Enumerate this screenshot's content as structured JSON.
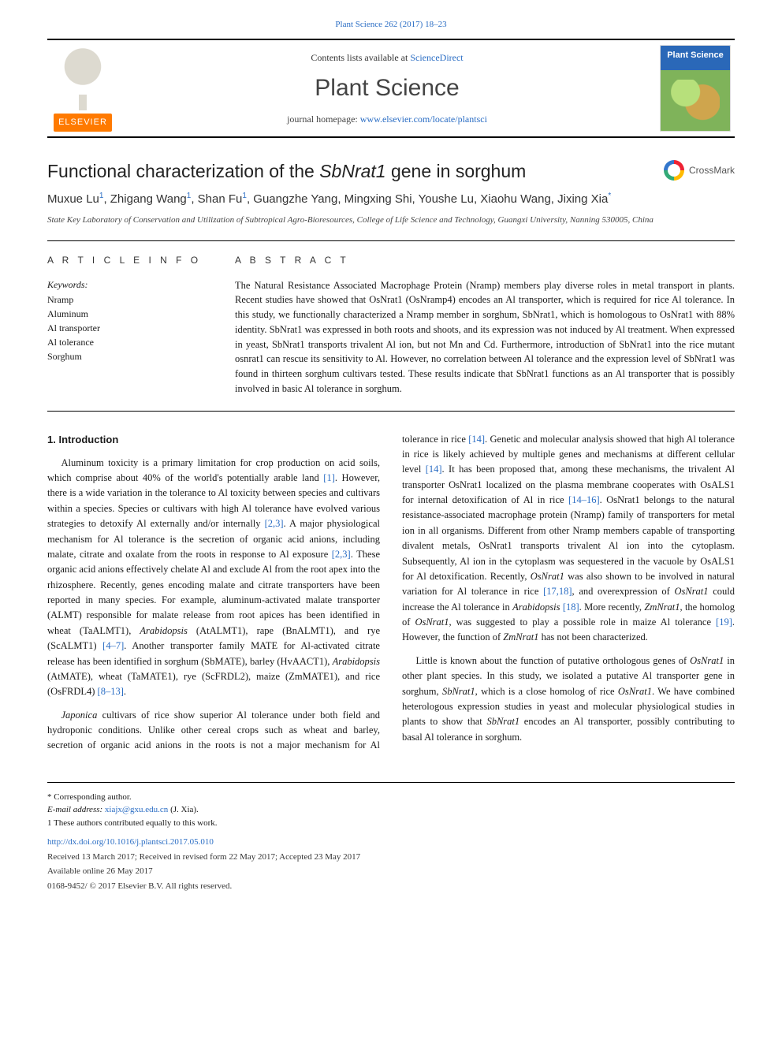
{
  "colors": {
    "link": "#2a6dc4",
    "elsevier_orange": "#ff7a00",
    "cover_blue": "#2a68b8",
    "cover_green": "#7fb35a",
    "text": "#1a1a1a"
  },
  "top_citation": "Plant Science 262 (2017) 18–23",
  "masthead": {
    "contents_prefix": "Contents lists available at ",
    "contents_link": "ScienceDirect",
    "journal": "Plant Science",
    "homepage_prefix": "journal homepage: ",
    "homepage_url": "www.elsevier.com/locate/plantsci",
    "publisher_wordmark": "ELSEVIER",
    "cover_label": "Plant Science"
  },
  "title_plain_pre": "Functional characterization of the ",
  "title_ital": "SbNrat1",
  "title_plain_post": " gene in sorghum",
  "crossmark_label": "CrossMark",
  "authors_html": "Muxue Lu<sup>1</sup>, Zhigang Wang<sup>1</sup>, Shan Fu<sup>1</sup>, Guangzhe Yang, Mingxing Shi, Youshe Lu, Xiaohu Wang, Jixing Xia<sup>*</sup>",
  "affiliation": "State Key Laboratory of Conservation and Utilization of Subtropical Agro-Bioresources, College of Life Science and Technology, Guangxi University, Nanning 530005, China",
  "labels": {
    "article_info": "A R T I C L E  I N F O",
    "abstract": "A B S T R A C T",
    "keywords": "Keywords:"
  },
  "keywords": [
    "Nramp",
    "Aluminum",
    "Al transporter",
    "Al tolerance",
    "Sorghum"
  ],
  "abstract": "The Natural Resistance Associated Macrophage Protein (Nramp) members play diverse roles in metal transport in plants. Recent studies have showed that OsNrat1 (OsNramp4) encodes an Al transporter, which is required for rice Al tolerance. In this study, we functionally characterized a Nramp member in sorghum, SbNrat1, which is homologous to OsNrat1 with 88% identity. SbNrat1 was expressed in both roots and shoots, and its expression was not induced by Al treatment. When expressed in yeast, SbNrat1 transports trivalent Al ion, but not Mn and Cd. Furthermore, introduction of SbNrat1 into the rice mutant osnrat1 can rescue its sensitivity to Al. However, no correlation between Al tolerance and the expression level of SbNrat1 was found in thirteen sorghum cultivars tested. These results indicate that SbNrat1 functions as an Al transporter that is possibly involved in basic Al tolerance in sorghum.",
  "section_heading": "1. Introduction",
  "body_paragraphs": [
    "Aluminum toxicity is a primary limitation for crop production on acid soils, which comprise about 40% of the world's potentially arable land <span class='ref'>[1]</span>. However, there is a wide variation in the tolerance to Al toxicity between species and cultivars within a species. Species or cultivars with high Al tolerance have evolved various strategies to detoxify Al externally and/or internally <span class='ref'>[2,3]</span>. A major physiological mechanism for Al tolerance is the secretion of organic acid anions, including malate, citrate and oxalate from the roots in response to Al exposure <span class='ref'>[2,3]</span>. These organic acid anions effectively chelate Al and exclude Al from the root apex into the rhizosphere. Recently, genes encoding malate and citrate transporters have been reported in many species. For example, aluminum-activated malate transporter (ALMT) responsible for malate release from root apices has been identified in wheat (TaALMT1), <span class='ital'>Arabidopsis</span> (AtALMT1), rape (BnALMT1), and rye (ScALMT1) <span class='ref'>[4–7]</span>. Another transporter family MATE for Al-activated citrate release has been identified in sorghum (SbMATE), barley (HvAACT1), <span class='ital'>Arabidopsis</span> (AtMATE), wheat (TaMATE1), rye (ScFRDL2), maize (ZmMATE1), and rice (OsFRDL4) <span class='ref'>[8–13]</span>.",
    "<span class='ital'>Japonica</span> cultivars of rice show superior Al tolerance under both field and hydroponic conditions. Unlike other cereal crops such as wheat and barley, secretion of organic acid anions in the roots is not a major mechanism for Al tolerance in rice <span class='ref'>[14]</span>. Genetic and molecular analysis showed that high Al tolerance in rice is likely achieved by multiple genes and mechanisms at different cellular level <span class='ref'>[14]</span>. It has been proposed that, among these mechanisms, the trivalent Al transporter OsNrat1 localized on the plasma membrane cooperates with OsALS1 for internal detoxification of Al in rice <span class='ref'>[14–16]</span>. OsNrat1 belongs to the natural resistance-associated macrophage protein (Nramp) family of transporters for metal ion in all organisms. Different from other Nramp members capable of transporting divalent metals, OsNrat1 transports trivalent Al ion into the cytoplasm. Subsequently, Al ion in the cytoplasm was sequestered in the vacuole by OsALS1 for Al detoxification. Recently, <span class='ital'>OsNrat1</span> was also shown to be involved in natural variation for Al tolerance in rice <span class='ref'>[17,18]</span>, and overexpression of <span class='ital'>OsNrat1</span> could increase the Al tolerance in <span class='ital'>Arabidopsis</span> <span class='ref'>[18]</span>. More recently, <span class='ital'>ZmNrat1</span>, the homolog of <span class='ital'>OsNrat1</span>, was suggested to play a possible role in maize Al tolerance <span class='ref'>[19]</span>. However, the function of <span class='ital'>ZmNrat1</span> has not been characterized.",
    "Little is known about the function of putative orthologous genes of <span class='ital'>OsNrat1</span> in other plant species. In this study, we isolated a putative Al transporter gene in sorghum, <span class='ital'>SbNrat1</span>, which is a close homolog of rice <span class='ital'>OsNrat1</span>. We have combined heterologous expression studies in yeast and molecular physiological studies in plants to show that <span class='ital'>SbNrat1</span> encodes an Al transporter, possibly contributing to basal Al tolerance in sorghum."
  ],
  "footnotes": {
    "corresponding": "* Corresponding author.",
    "email_label": "E-mail address: ",
    "email": "xiajx@gxu.edu.cn",
    "email_suffix": " (J. Xia).",
    "equal": "1 These authors contributed equally to this work.",
    "doi": "http://dx.doi.org/10.1016/j.plantsci.2017.05.010",
    "history": "Received 13 March 2017; Received in revised form 22 May 2017; Accepted 23 May 2017",
    "available": "Available online 26 May 2017",
    "copyright": "0168-9452/ © 2017 Elsevier B.V. All rights reserved."
  }
}
